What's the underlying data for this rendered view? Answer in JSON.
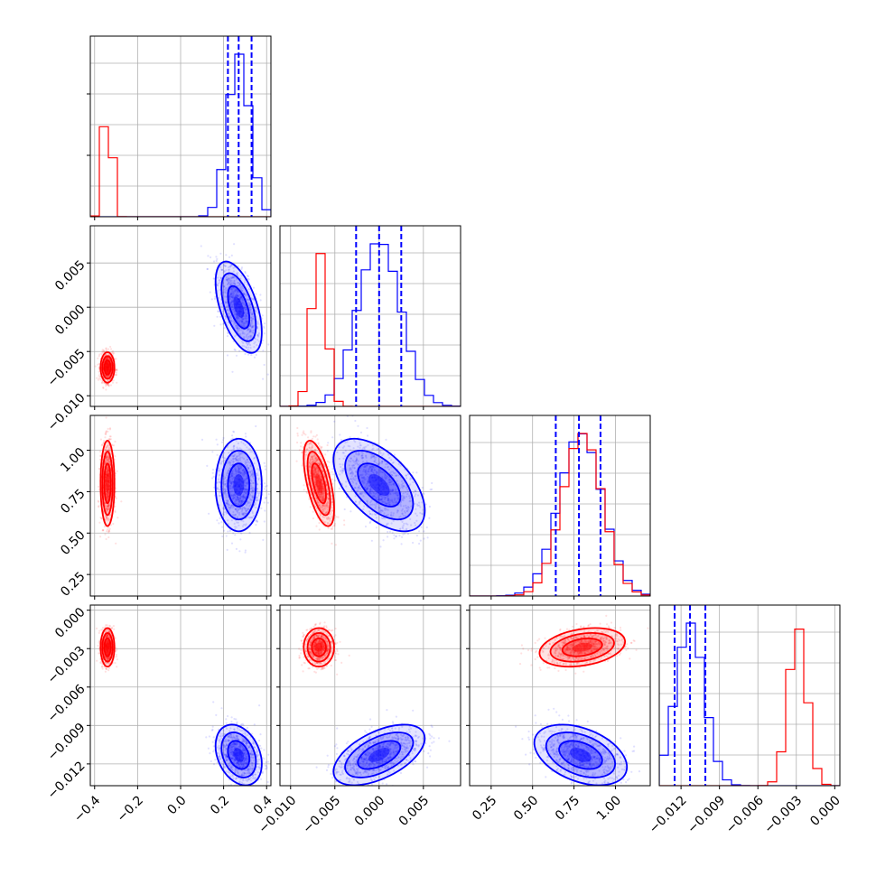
{
  "colors": {
    "blue": "#0000ff",
    "red": "#ff0000",
    "grid": "#b0b0b0",
    "axis": "#000000"
  },
  "chart_data": {
    "type": "corner",
    "title": "",
    "grid": true,
    "parameters": [
      {
        "range": [
          -0.42,
          0.42
        ],
        "ticks": [
          -0.4,
          -0.2,
          0.0,
          0.2,
          0.4
        ],
        "tick_labels": [
          "−0.4",
          "−0.2",
          "0.0",
          "0.2",
          "0.4"
        ]
      },
      {
        "range": [
          -0.0112,
          0.0092
        ],
        "ticks": [
          -0.01,
          -0.005,
          0.0,
          0.005
        ],
        "tick_labels": [
          "−0.010",
          "−0.005",
          "0.000",
          "0.005"
        ]
      },
      {
        "range": [
          0.12,
          1.21
        ],
        "ticks": [
          0.25,
          0.5,
          0.75,
          1.0
        ],
        "tick_labels": [
          "0.25",
          "0.50",
          "0.75",
          "1.00"
        ]
      },
      {
        "range": [
          -0.0137,
          0.0004
        ],
        "ticks": [
          -0.012,
          -0.009,
          -0.006,
          -0.003,
          0.0
        ],
        "tick_labels": [
          "−0.012",
          "−0.009",
          "−0.006",
          "−0.003",
          "0.000"
        ]
      }
    ],
    "series": [
      {
        "color": "blue",
        "mean": [
          0.27,
          0.0,
          0.79,
          -0.0113
        ],
        "sd": [
          0.05,
          0.0024,
          0.13,
          0.0011
        ],
        "corr": [
          [
            0,
            1,
            -0.55
          ],
          [
            1,
            2,
            -0.55
          ],
          [
            2,
            3,
            -0.4
          ],
          [
            0,
            3,
            -0.3
          ],
          [
            1,
            3,
            0.55
          ]
        ],
        "quantiles_shown": true
      },
      {
        "color": "red",
        "mean": [
          -0.34,
          -0.0068,
          0.8,
          -0.0029
        ],
        "sd": [
          0.015,
          0.0008,
          0.12,
          0.0007
        ],
        "corr": [
          [
            1,
            2,
            -0.6
          ],
          [
            2,
            3,
            0.3
          ]
        ],
        "quantiles_shown": false
      }
    ],
    "histograms": {
      "0": {
        "blue": [
          0,
          0,
          0,
          0,
          2,
          10,
          55,
          120,
          160,
          150,
          95,
          35,
          8,
          1,
          0,
          0
        ],
        "red": [
          28,
          200,
          330,
          205,
          12,
          0,
          0,
          0,
          0,
          0,
          0,
          0,
          0,
          0,
          0,
          0
        ],
        "bins": [
          -0.42,
          -0.375,
          -0.36,
          -0.33,
          -0.3,
          -0.27,
          -0.24,
          0.18,
          0.21,
          0.24,
          0.27,
          0.3,
          0.33,
          0.36,
          0.39,
          0.42
        ]
      },
      "quantile_lines": [
        [
          0.22,
          0.27,
          0.33
        ],
        [
          -0.0026,
          0.0,
          0.0025
        ],
        [
          0.64,
          0.78,
          0.91
        ],
        [
          -0.0125,
          -0.0113,
          -0.0101
        ]
      ]
    }
  }
}
